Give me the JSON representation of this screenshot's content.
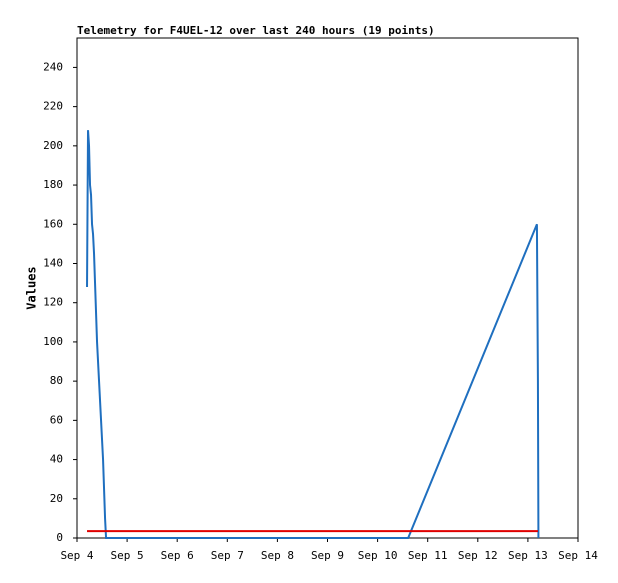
{
  "chart_data": {
    "type": "line",
    "title": "Telemetry for F4UEL-12 over last 240 hours (19 points)",
    "y_label": "Values",
    "xlim": [
      4,
      14
    ],
    "xticks": [
      {
        "value": 4,
        "label": "Sep 4"
      },
      {
        "value": 5,
        "label": "Sep 5"
      },
      {
        "value": 6,
        "label": "Sep 6"
      },
      {
        "value": 7,
        "label": "Sep 7"
      },
      {
        "value": 8,
        "label": "Sep 8"
      },
      {
        "value": 9,
        "label": "Sep 9"
      },
      {
        "value": 10,
        "label": "Sep 10"
      },
      {
        "value": 11,
        "label": "Sep 11"
      },
      {
        "value": 12,
        "label": "Sep 12"
      },
      {
        "value": 13,
        "label": "Sep 13"
      },
      {
        "value": 14,
        "label": "Sep 14"
      }
    ],
    "ylim": [
      0,
      255
    ],
    "yticks": [
      0,
      20,
      40,
      60,
      80,
      100,
      120,
      140,
      160,
      180,
      200,
      220,
      240
    ],
    "series": [
      {
        "color": "#1f6fbf",
        "x": [
          4.2,
          4.22,
          4.24,
          4.26,
          4.28,
          4.3,
          4.32,
          4.34,
          4.36,
          4.4,
          4.44,
          4.48,
          4.52,
          4.56,
          4.58,
          10.61,
          13.18,
          13.2,
          13.21
        ],
        "values": [
          128,
          208,
          200,
          180,
          175,
          160,
          155,
          145,
          130,
          100,
          80,
          60,
          40,
          10,
          0,
          0,
          160,
          80,
          0
        ]
      },
      {
        "color": "#e00000",
        "x": [
          4.2,
          13.2
        ],
        "values": [
          3.5,
          3.5
        ]
      }
    ]
  }
}
